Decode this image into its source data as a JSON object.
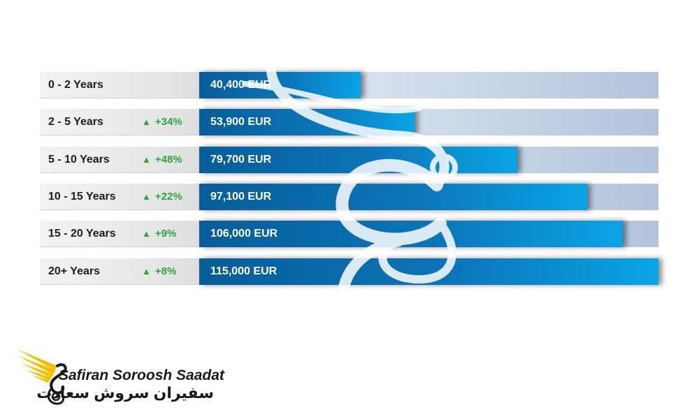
{
  "chart_data": {
    "type": "bar",
    "orientation": "horizontal",
    "categories": [
      "0 - 2 Years",
      "2 - 5 Years",
      "5 - 10 Years",
      "10 - 15 Years",
      "15 - 20 Years",
      "20+ Years"
    ],
    "values": [
      40400,
      53900,
      79700,
      97100,
      106000,
      115000
    ],
    "value_labels": [
      "40,400 EUR",
      "53,900 EUR",
      "79,700 EUR",
      "97,100 EUR",
      "106,000 EUR",
      "115,000 EUR"
    ],
    "changes": [
      "",
      "+34%",
      "+48%",
      "+22%",
      "+9%",
      "+8%"
    ],
    "xlim": [
      0,
      115000
    ],
    "grid": false,
    "colors": {
      "bar": "#0b75b8",
      "bar_highlight": "#0aa4e6",
      "track": "#ccd9e9",
      "change_up": "#2aa63b",
      "label_bg": "#e9e9e9"
    }
  },
  "change_icon": "triangle-up-icon",
  "brand": {
    "name_en": "Safiran Soroosh Saadat",
    "name_fa": "سفیران سروش سعادت",
    "logo_icon": "wing-swan-logo-icon",
    "colors": {
      "wing": "#f2c000",
      "text": "#1a1a1a"
    }
  }
}
